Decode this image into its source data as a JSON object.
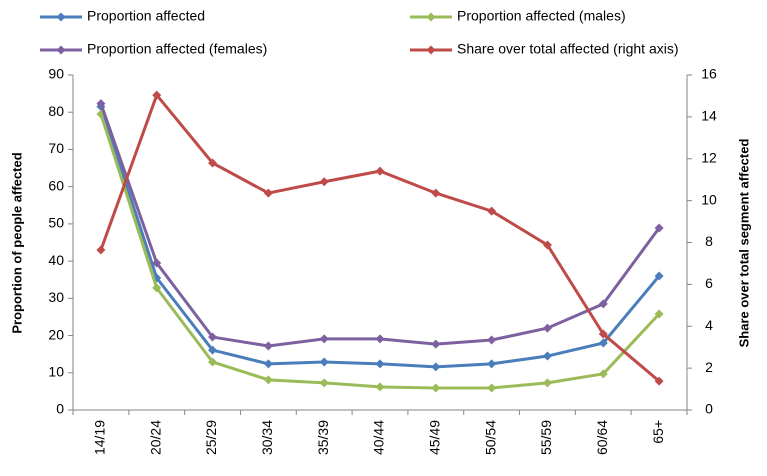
{
  "chart_data": {
    "type": "line",
    "categories": [
      "14/19",
      "20/24",
      "25/29",
      "30/34",
      "35/39",
      "40/44",
      "45/49",
      "50/54",
      "55/59",
      "60/64",
      "65+"
    ],
    "y_label": "Proportion of people affected",
    "y2_label": "Share over total segment affected",
    "ylim": [
      0,
      90
    ],
    "yticks": [
      0,
      10,
      20,
      30,
      40,
      50,
      60,
      70,
      80,
      90
    ],
    "y2lim": [
      0,
      16
    ],
    "y2ticks": [
      0,
      2,
      4,
      6,
      8,
      10,
      12,
      14,
      16
    ],
    "legend": "top",
    "series": [
      {
        "name": "Proportion affected",
        "color": "#4a7ebb",
        "values": [
          81.5,
          35.5,
          16.1,
          12.4,
          12.9,
          12.4,
          11.6,
          12.4,
          14.5,
          18,
          36
        ]
      },
      {
        "name": "Proportion affected (males)",
        "color": "#9bbb59",
        "values": [
          79.5,
          32.8,
          12.9,
          8.1,
          7.3,
          6.2,
          5.9,
          5.9,
          7.3,
          9.7,
          25.8
        ]
      },
      {
        "name": "Proportion affected (females)",
        "color": "#7d60a0",
        "values": [
          82.3,
          39.5,
          19.6,
          17.2,
          19.1,
          19.1,
          17.7,
          18.8,
          22,
          28.5,
          48.9
        ]
      },
      {
        "name": "Share over total affected (right axis)",
        "color": "#be4b48",
        "axis": "y2",
        "values": [
          7.64,
          15.04,
          11.8,
          10.36,
          10.9,
          11.41,
          10.36,
          9.5,
          7.88,
          3.63,
          1.38
        ]
      }
    ]
  }
}
